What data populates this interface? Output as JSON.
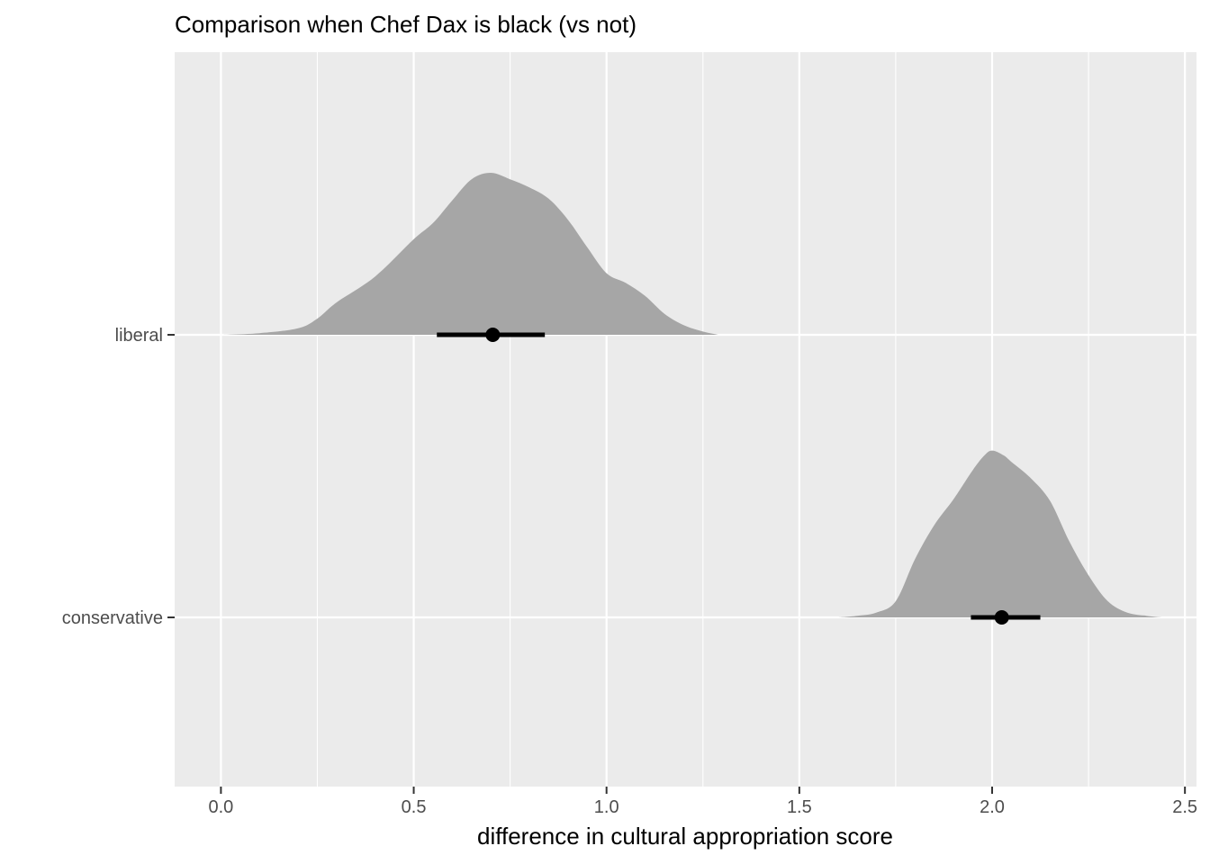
{
  "chart_data": {
    "type": "density",
    "title": "Comparison when Chef Dax is black (vs not)",
    "xlabel": "difference in cultural appropriation score",
    "ylabel": "",
    "xlim": [
      -0.12,
      2.53
    ],
    "xticks": [
      0.0,
      0.5,
      1.0,
      1.5,
      2.0,
      2.5
    ],
    "xtick_labels": [
      "0.0",
      "0.5",
      "1.0",
      "1.5",
      "2.0",
      "2.5"
    ],
    "categories": [
      "liberal",
      "conservative"
    ],
    "grid": true,
    "fill_color": "#a6a6a6",
    "panel_color": "#ebebeb",
    "grid_color": "#ffffff",
    "series": [
      {
        "name": "liberal",
        "point": 0.705,
        "interval": [
          0.56,
          0.84
        ],
        "density": [
          [
            0.0,
            0.0
          ],
          [
            0.1,
            0.01
          ],
          [
            0.2,
            0.04
          ],
          [
            0.25,
            0.1
          ],
          [
            0.3,
            0.2
          ],
          [
            0.4,
            0.36
          ],
          [
            0.5,
            0.59
          ],
          [
            0.55,
            0.69
          ],
          [
            0.6,
            0.83
          ],
          [
            0.65,
            0.96
          ],
          [
            0.7,
            1.0
          ],
          [
            0.75,
            0.96
          ],
          [
            0.8,
            0.91
          ],
          [
            0.85,
            0.84
          ],
          [
            0.9,
            0.71
          ],
          [
            0.95,
            0.54
          ],
          [
            1.0,
            0.38
          ],
          [
            1.05,
            0.32
          ],
          [
            1.1,
            0.24
          ],
          [
            1.15,
            0.13
          ],
          [
            1.2,
            0.06
          ],
          [
            1.25,
            0.02
          ],
          [
            1.29,
            0.0
          ]
        ]
      },
      {
        "name": "conservative",
        "point": 2.025,
        "interval": [
          1.945,
          2.125
        ],
        "density": [
          [
            1.6,
            0.0
          ],
          [
            1.65,
            0.01
          ],
          [
            1.7,
            0.03
          ],
          [
            1.75,
            0.1
          ],
          [
            1.8,
            0.36
          ],
          [
            1.85,
            0.57
          ],
          [
            1.9,
            0.73
          ],
          [
            1.95,
            0.91
          ],
          [
            1.98,
            1.0
          ],
          [
            2.0,
            1.03
          ],
          [
            2.03,
            1.0
          ],
          [
            2.05,
            0.96
          ],
          [
            2.1,
            0.86
          ],
          [
            2.15,
            0.72
          ],
          [
            2.2,
            0.47
          ],
          [
            2.25,
            0.26
          ],
          [
            2.3,
            0.1
          ],
          [
            2.35,
            0.03
          ],
          [
            2.4,
            0.01
          ],
          [
            2.44,
            0.0
          ]
        ]
      }
    ]
  }
}
